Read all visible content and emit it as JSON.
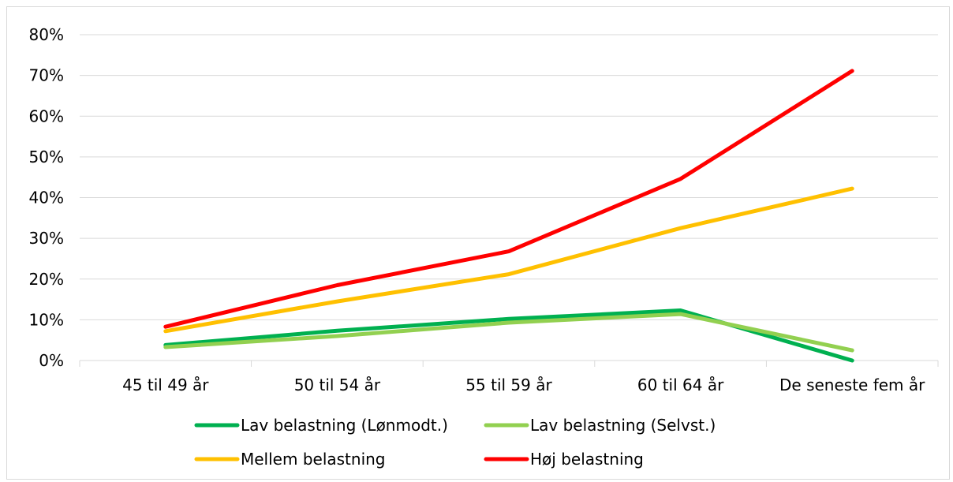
{
  "chart_data": {
    "type": "line",
    "title": "",
    "xlabel": "",
    "ylabel": "",
    "ylim": [
      0,
      80
    ],
    "y_ticks": [
      "0%",
      "10%",
      "20%",
      "30%",
      "40%",
      "50%",
      "60%",
      "70%",
      "80%"
    ],
    "grid": true,
    "legend_position": "bottom",
    "categories": [
      "45 til 49 år",
      "50 til 54 år",
      "55 til 59 år",
      "60 til 64 år",
      "De seneste fem år"
    ],
    "series": [
      {
        "name": "Lav belastning (Lønmodt.)",
        "color": "#00b050",
        "values": [
          3.8,
          7.3,
          10.2,
          12.3,
          0.0
        ]
      },
      {
        "name": "Lav belastning (Selvst.)",
        "color": "#92d050",
        "values": [
          3.3,
          6.0,
          9.3,
          11.4,
          2.5
        ]
      },
      {
        "name": "Mellem belastning",
        "color": "#ffc000",
        "values": [
          7.2,
          14.5,
          21.2,
          32.5,
          42.2
        ]
      },
      {
        "name": "Høj belastning",
        "color": "#ff0000",
        "values": [
          8.3,
          18.5,
          26.8,
          44.6,
          71.1
        ]
      }
    ]
  }
}
